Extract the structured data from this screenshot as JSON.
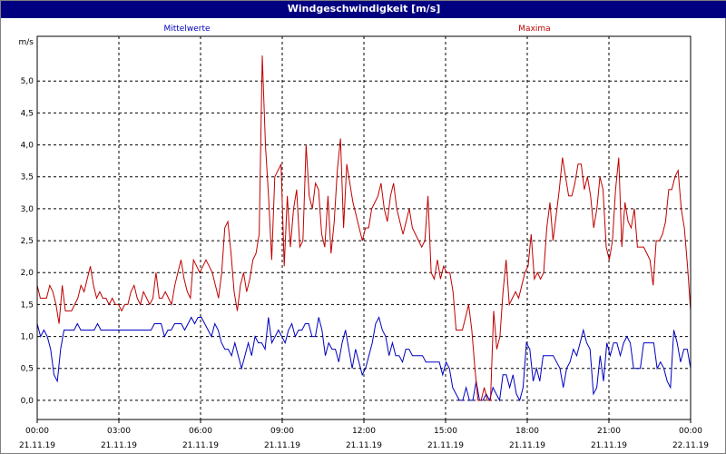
{
  "window": {
    "title": "Windgeschwindigkeit [m/s]"
  },
  "chart_data": {
    "type": "line",
    "title": "Windgeschwindigkeit [m/s]",
    "ylabel": "m/s",
    "xlabel": "",
    "ylim": [
      -0.3,
      5.7
    ],
    "yticks": [
      0.0,
      0.5,
      1.0,
      1.5,
      2.0,
      2.5,
      3.0,
      3.5,
      4.0,
      4.5,
      5.0
    ],
    "ytick_labels": [
      "0,0",
      "0,5",
      "1,0",
      "1,5",
      "2,0",
      "2,5",
      "3,0",
      "3,5",
      "4,0",
      "4,5",
      "5,0"
    ],
    "xlim_hours": [
      0,
      24
    ],
    "xticks": [
      {
        "hour": 0,
        "time": "00:00",
        "date": "21.11.19"
      },
      {
        "hour": 3,
        "time": "03:00",
        "date": "21.11.19"
      },
      {
        "hour": 6,
        "time": "06:00",
        "date": "21.11.19"
      },
      {
        "hour": 9,
        "time": "09:00",
        "date": "21.11.19"
      },
      {
        "hour": 12,
        "time": "12:00",
        "date": "21.11.19"
      },
      {
        "hour": 15,
        "time": "15:00",
        "date": "21.11.19"
      },
      {
        "hour": 18,
        "time": "18:00",
        "date": "21.11.19"
      },
      {
        "hour": 21,
        "time": "21:00",
        "date": "21.11.19"
      },
      {
        "hour": 24,
        "time": "00:00",
        "date": "22.11.19"
      }
    ],
    "grid": true,
    "legend_placement": "top",
    "series": [
      {
        "name": "Mittelwerte",
        "color": "#0000c0",
        "y": [
          1.2,
          1.0,
          1.1,
          1.0,
          0.8,
          0.4,
          0.3,
          0.8,
          1.1,
          1.1,
          1.1,
          1.1,
          1.2,
          1.1,
          1.1,
          1.1,
          1.1,
          1.1,
          1.2,
          1.1,
          1.1,
          1.1,
          1.1,
          1.1,
          1.1,
          1.1,
          1.1,
          1.1,
          1.1,
          1.1,
          1.1,
          1.1,
          1.1,
          1.1,
          1.1,
          1.2,
          1.2,
          1.2,
          1.0,
          1.1,
          1.1,
          1.2,
          1.2,
          1.2,
          1.1,
          1.2,
          1.3,
          1.2,
          1.3,
          1.3,
          1.2,
          1.1,
          1.0,
          1.2,
          1.1,
          0.9,
          0.8,
          0.8,
          0.7,
          0.9,
          0.7,
          0.5,
          0.7,
          0.9,
          0.7,
          1.0,
          0.9,
          0.9,
          0.8,
          1.3,
          0.9,
          1.0,
          1.1,
          1.0,
          0.9,
          1.1,
          1.2,
          1.0,
          1.1,
          1.1,
          1.2,
          1.2,
          1.0,
          1.0,
          1.3,
          1.1,
          0.7,
          0.9,
          0.8,
          0.8,
          0.6,
          0.9,
          1.1,
          0.8,
          0.5,
          0.8,
          0.6,
          0.4,
          0.5,
          0.7,
          0.9,
          1.2,
          1.3,
          1.1,
          1.0,
          0.7,
          0.9,
          0.7,
          0.7,
          0.6,
          0.8,
          0.8,
          0.7,
          0.7,
          0.7,
          0.7,
          0.6,
          0.6,
          0.6,
          0.6,
          0.6,
          0.4,
          0.6,
          0.5,
          0.2,
          0.1,
          0.0,
          0.0,
          0.2,
          0.0,
          0.0,
          0.3,
          0.0,
          0.0,
          0.1,
          0.0,
          0.2,
          0.1,
          0.0,
          0.4,
          0.4,
          0.2,
          0.4,
          0.1,
          0.0,
          0.2,
          0.9,
          0.8,
          0.3,
          0.5,
          0.3,
          0.7,
          0.7,
          0.7,
          0.7,
          0.6,
          0.5,
          0.2,
          0.5,
          0.6,
          0.8,
          0.7,
          0.9,
          1.1,
          0.9,
          0.8,
          0.1,
          0.2,
          0.7,
          0.3,
          0.9,
          0.7,
          0.9,
          0.9,
          0.7,
          0.9,
          1.0,
          0.9,
          0.5,
          0.5,
          0.5,
          0.9,
          0.9,
          0.9,
          0.9,
          0.5,
          0.6,
          0.5,
          0.3,
          0.2,
          1.1,
          0.9,
          0.6,
          0.8,
          0.8,
          0.5
        ]
      },
      {
        "name": "Maxima",
        "color": "#c00000",
        "y": [
          1.8,
          1.6,
          1.6,
          1.6,
          1.8,
          1.7,
          1.5,
          1.2,
          1.8,
          1.4,
          1.4,
          1.4,
          1.5,
          1.6,
          1.8,
          1.7,
          1.9,
          2.1,
          1.8,
          1.6,
          1.7,
          1.6,
          1.6,
          1.5,
          1.6,
          1.5,
          1.5,
          1.4,
          1.5,
          1.5,
          1.7,
          1.8,
          1.6,
          1.5,
          1.7,
          1.6,
          1.5,
          1.6,
          2.0,
          1.6,
          1.6,
          1.7,
          1.6,
          1.5,
          1.8,
          2.0,
          2.2,
          1.9,
          1.7,
          1.6,
          2.2,
          2.1,
          2.0,
          2.1,
          2.2,
          2.1,
          2.0,
          1.8,
          1.6,
          2.0,
          2.7,
          2.8,
          2.3,
          1.7,
          1.4,
          1.8,
          2.0,
          1.7,
          1.9,
          2.2,
          2.3,
          2.6,
          5.4,
          4.0,
          3.2,
          2.2,
          3.5,
          3.6,
          3.7,
          2.1,
          3.2,
          2.4,
          3.0,
          3.3,
          2.4,
          2.5,
          4.0,
          3.2,
          3.0,
          3.4,
          3.3,
          2.6,
          2.4,
          3.2,
          2.3,
          2.8,
          3.6,
          4.1,
          2.7,
          3.7,
          3.4,
          3.1,
          2.9,
          2.7,
          2.5,
          2.7,
          2.7,
          3.0,
          3.1,
          3.2,
          3.4,
          3.0,
          2.8,
          3.2,
          3.4,
          3.0,
          2.8,
          2.6,
          2.8,
          3.0,
          2.7,
          2.6,
          2.5,
          2.4,
          2.5,
          3.2,
          2.0,
          1.9,
          2.2,
          1.9,
          2.1,
          2.0,
          2.0,
          1.7,
          1.1,
          1.1,
          1.1,
          1.3,
          1.5,
          1.1,
          0.5,
          0.0,
          0.0,
          0.2,
          0.0,
          0.0,
          1.4,
          0.8,
          1.0,
          1.7,
          2.2,
          1.5,
          1.6,
          1.7,
          1.6,
          1.8,
          2.0,
          2.1,
          2.6,
          1.9,
          2.0,
          1.9,
          2.0,
          2.7,
          3.1,
          2.5,
          2.9,
          3.3,
          3.8,
          3.5,
          3.2,
          3.2,
          3.4,
          3.7,
          3.7,
          3.3,
          3.5,
          3.2,
          2.7,
          3.0,
          3.5,
          3.3,
          2.4,
          2.2,
          2.5,
          3.3,
          3.8,
          2.4,
          3.1,
          2.8,
          2.7,
          3.0,
          2.4,
          2.4,
          2.4,
          2.3,
          2.2,
          1.8,
          2.5,
          2.5,
          2.6,
          2.8,
          3.3,
          3.3,
          3.5,
          3.6,
          3.0,
          2.7,
          2.1,
          1.4
        ]
      }
    ]
  }
}
